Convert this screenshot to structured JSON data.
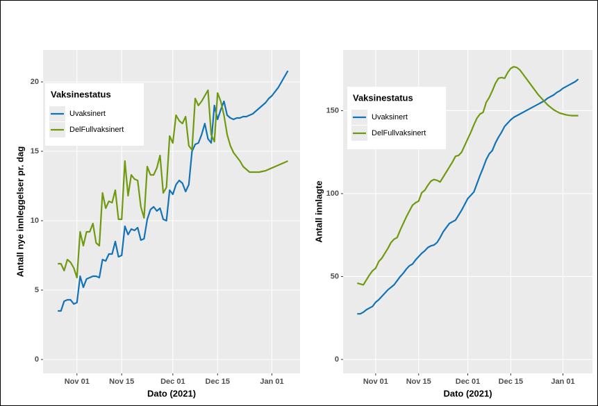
{
  "chart_data": [
    {
      "type": "line",
      "x": [
        299,
        300,
        301,
        302,
        303,
        304,
        305,
        306,
        307,
        308,
        309,
        310,
        311,
        312,
        313,
        314,
        315,
        316,
        317,
        318,
        319,
        320,
        321,
        322,
        323,
        324,
        325,
        326,
        327,
        328,
        329,
        330,
        331,
        332,
        333,
        334,
        335,
        336,
        337,
        338,
        339,
        340,
        341,
        342,
        343,
        344,
        345,
        346,
        347,
        348,
        349,
        350,
        351,
        352,
        353,
        354,
        355,
        356,
        357,
        358,
        359,
        360,
        361,
        362,
        363,
        364,
        365,
        366,
        367,
        368,
        369,
        370,
        371
      ],
      "series": [
        {
          "name": "Uvaksinert",
          "color": "#1172b6",
          "values": [
            3.5,
            3.5,
            4.2,
            4.3,
            4.3,
            4.0,
            4.1,
            6.0,
            5.2,
            5.8,
            5.9,
            6.0,
            6.0,
            5.9,
            7.2,
            7.1,
            7.6,
            7.6,
            8.5,
            7.4,
            7.5,
            9.6,
            9.0,
            9.4,
            9.3,
            9.5,
            8.6,
            8.7,
            10.1,
            10.8,
            11.0,
            10.7,
            10.9,
            10.1,
            10.0,
            12.2,
            11.9,
            12.6,
            12.9,
            12.7,
            12.1,
            12.6,
            15.0,
            15.5,
            15.6,
            16.2,
            17.0,
            15.9,
            15.6,
            18.3,
            17.3,
            18.0,
            18.6,
            17.6,
            17.4,
            17.3,
            17.4,
            17.4,
            17.5,
            17.5,
            17.6,
            17.7,
            17.9,
            18.1,
            18.3,
            18.5,
            18.8,
            19.0,
            19.3,
            19.6,
            20.0,
            20.4,
            20.8
          ]
        },
        {
          "name": "DelFullvaksinert",
          "color": "#6f9a0f",
          "values": [
            6.9,
            6.9,
            6.4,
            7.2,
            7.0,
            6.6,
            5.9,
            9.2,
            8.2,
            9.2,
            9.2,
            9.8,
            8.4,
            8.2,
            12.0,
            10.9,
            11.4,
            11.3,
            12.2,
            10.1,
            10.1,
            14.3,
            11.8,
            13.3,
            13.0,
            12.9,
            11.0,
            10.2,
            13.9,
            13.3,
            13.3,
            13.8,
            14.7,
            12.0,
            12.4,
            16.1,
            15.6,
            17.6,
            17.2,
            17.0,
            17.5,
            15.4,
            15.1,
            18.8,
            18.3,
            18.6,
            19.0,
            19.4,
            16.2,
            15.7,
            19.2,
            18.6,
            17.6,
            16.2,
            15.4,
            14.9,
            14.6,
            14.3,
            13.9,
            13.7,
            13.5,
            13.5,
            13.5,
            13.5,
            13.55,
            13.6,
            13.7,
            13.8,
            13.9,
            14.0,
            14.1,
            14.2,
            14.3
          ]
        }
      ],
      "legend_title": "Vaksinestatus",
      "xlabel": "Dato (2021)",
      "ylabel": "Antall nye innleggelser pr. dag",
      "xlim": [
        294.4,
        374.8
      ],
      "ylim": [
        -1.0,
        22.3
      ],
      "xticks": [
        {
          "value": 305,
          "label": "Nov 01"
        },
        {
          "value": 319,
          "label": "Nov 15"
        },
        {
          "value": 335,
          "label": "Dec 01"
        },
        {
          "value": 349,
          "label": "Dec 15"
        },
        {
          "value": 366,
          "label": "Jan 01"
        }
      ],
      "yticks": [
        0,
        5,
        10,
        15,
        20
      ],
      "grid": true
    },
    {
      "type": "line",
      "x": [
        299,
        300,
        301,
        302,
        303,
        304,
        305,
        306,
        307,
        308,
        309,
        310,
        311,
        312,
        313,
        314,
        315,
        316,
        317,
        318,
        319,
        320,
        321,
        322,
        323,
        324,
        325,
        326,
        327,
        328,
        329,
        330,
        331,
        332,
        333,
        334,
        335,
        336,
        337,
        338,
        339,
        340,
        341,
        342,
        343,
        344,
        345,
        346,
        347,
        348,
        349,
        350,
        351,
        352,
        353,
        354,
        355,
        356,
        357,
        358,
        359,
        360,
        361,
        362,
        363,
        364,
        365,
        366,
        367,
        368,
        369,
        370,
        371
      ],
      "series": [
        {
          "name": "Uvaksinert",
          "color": "#1172b6",
          "values": [
            27.5,
            27.5,
            28.5,
            30,
            31,
            32,
            34.5,
            36,
            38,
            40,
            42,
            43.5,
            45,
            47.5,
            50,
            52,
            54.5,
            56.5,
            57.5,
            60,
            62,
            64,
            65.5,
            67.5,
            68.5,
            69,
            70.5,
            73.5,
            77,
            79.5,
            82,
            83,
            84,
            87,
            90,
            93.5,
            97,
            99,
            101,
            106,
            111,
            115.5,
            120.5,
            124,
            126,
            130.5,
            134,
            137,
            140.5,
            142.5,
            144.5,
            146,
            147,
            148,
            149,
            150,
            151,
            152,
            153,
            154,
            155,
            156,
            157.5,
            158.5,
            159.5,
            161,
            162,
            163.5,
            164.5,
            165.5,
            166.5,
            167.5,
            169
          ]
        },
        {
          "name": "DelFullvaksinert",
          "color": "#6f9a0f",
          "values": [
            46,
            45.5,
            45,
            48,
            51,
            53.5,
            55,
            59,
            61,
            64,
            67,
            70.5,
            72.5,
            73.5,
            78,
            82,
            86,
            89.5,
            93,
            94.5,
            95.5,
            100.5,
            102,
            105,
            107.5,
            108.5,
            108,
            107,
            110,
            113,
            116,
            119,
            122.5,
            123,
            125,
            129,
            133,
            137,
            141.5,
            145.5,
            148,
            149,
            155,
            158,
            162,
            166.5,
            169.5,
            170,
            169.5,
            173,
            175.5,
            176.5,
            176,
            174.5,
            172,
            169.5,
            167,
            164.5,
            162,
            159.5,
            157.5,
            155.5,
            153.5,
            152,
            150.5,
            149.5,
            148.5,
            148,
            147.5,
            147.2,
            147,
            147,
            147
          ]
        }
      ],
      "legend_title": "Vaksinestatus",
      "xlabel": "Dato (2021)",
      "ylabel": "Antall innlagte",
      "xlim": [
        294.4,
        375.6
      ],
      "ylim": [
        -8.4,
        186.6
      ],
      "xticks": [
        {
          "value": 305,
          "label": "Nov 01"
        },
        {
          "value": 319,
          "label": "Nov 15"
        },
        {
          "value": 335,
          "label": "Dec 01"
        },
        {
          "value": 349,
          "label": "Dec 15"
        },
        {
          "value": 366,
          "label": "Jan 01"
        }
      ],
      "yticks": [
        0,
        50,
        100,
        150
      ],
      "grid": true
    }
  ]
}
